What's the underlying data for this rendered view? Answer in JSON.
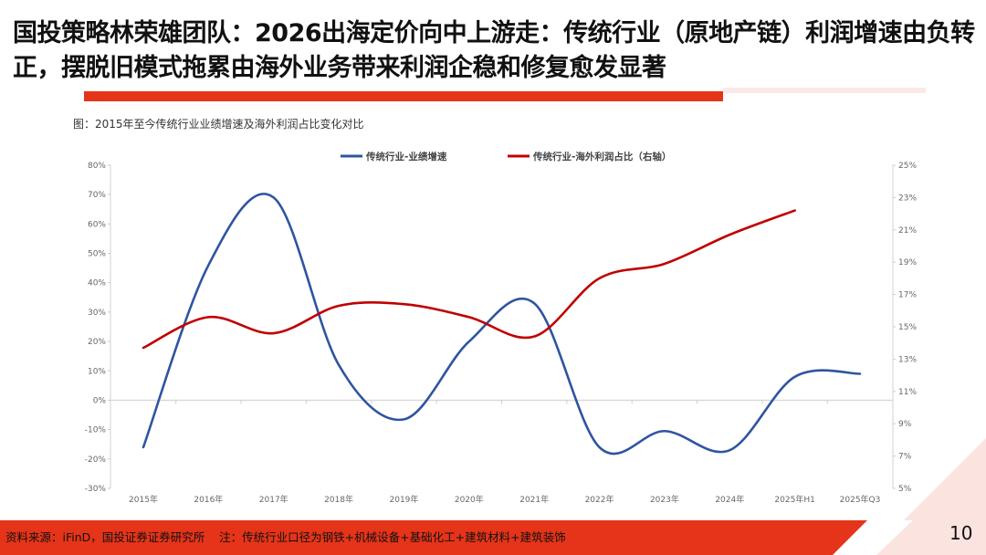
{
  "header": {
    "title": "国投策略林荣雄团队：2026出海定价向中上游走：传统行业（原地产链）利润增速由负转正，摆脱旧模式拖累由海外业务带来利润企稳和修复愈发显著"
  },
  "figure": {
    "caption": "图：2015年至今传统行业业绩增速及海外利润占比变化对比"
  },
  "chart_data": {
    "type": "line",
    "categories": [
      "2015年",
      "2016年",
      "2017年",
      "2018年",
      "2019年",
      "2020年",
      "2021年",
      "2022年",
      "2023年",
      "2024年",
      "2025年H1",
      "2025年Q3"
    ],
    "series": [
      {
        "name": "传统行业-业绩增速",
        "axis": "left",
        "color": "#2f54a0",
        "values": [
          -16,
          46,
          69,
          12,
          -6.5,
          20,
          33,
          -16,
          -10.5,
          -17,
          8,
          9
        ]
      },
      {
        "name": "传统行业-海外利润占比（右轴）",
        "axis": "right",
        "color": "#c00000",
        "values": [
          13.7,
          15.6,
          14.6,
          16.3,
          16.4,
          15.6,
          14.4,
          18.0,
          18.9,
          20.7,
          22.2,
          null
        ]
      }
    ],
    "left_axis": {
      "ylim": [
        -30,
        80
      ],
      "ticks": [
        "80%",
        "70%",
        "60%",
        "50%",
        "40%",
        "30%",
        "20%",
        "10%",
        "0%",
        "-10%",
        "-20%",
        "-30%"
      ]
    },
    "right_axis": {
      "ylim": [
        5,
        25
      ],
      "ticks": [
        "25%",
        "23%",
        "21%",
        "19%",
        "17%",
        "15%",
        "13%",
        "11%",
        "9%",
        "7%",
        "5%"
      ]
    },
    "smooth": true,
    "grid": false,
    "legend": "top"
  },
  "footer": {
    "source": "资料来源：iFinD，国投证券证券研究所    注：传统行业口径为钢铁+机械设备+基础化工+建筑材料+建筑装饰",
    "page_number": "10",
    "accent": "#e53419"
  }
}
